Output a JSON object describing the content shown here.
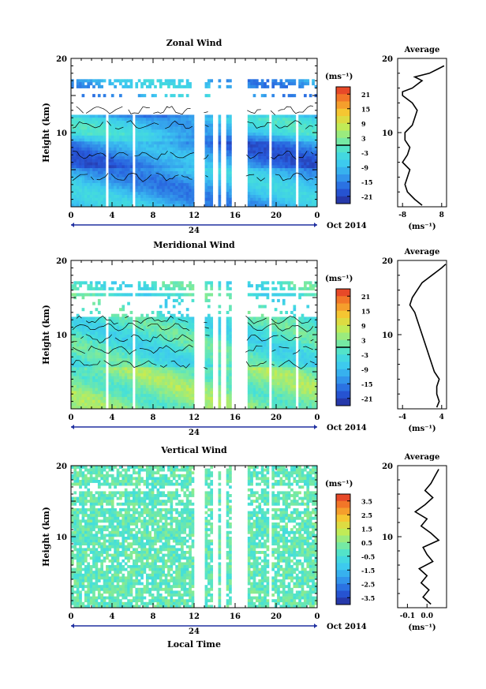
{
  "chart_data": [
    {
      "type": "heatmap",
      "title": "Zonal Wind",
      "ylabel": "Height (km)",
      "ylim": [
        0,
        20
      ],
      "y_ticks": [
        "20",
        "10"
      ],
      "x_ticks": [
        "0",
        "4",
        "8",
        "12",
        "16",
        "20",
        "0"
      ],
      "xlim": [
        0,
        24
      ],
      "date_day": "24",
      "date_month": "Oct 2014",
      "colorbar": {
        "unit": "(ms⁻¹)",
        "ticks": [
          "21",
          "15",
          "9",
          "3",
          "-3",
          "-9",
          "-15",
          "-21"
        ],
        "range": [
          -24,
          24
        ]
      },
      "profile": {
        "title": "Average",
        "xlabel": "(ms⁻¹)",
        "x_ticks": [
          "-8",
          "8"
        ],
        "y_ticks": [
          "20",
          "10"
        ],
        "xlim": [
          -10,
          10
        ],
        "heights": [
          0.2,
          1,
          2,
          3,
          4,
          5,
          6,
          7,
          8,
          9,
          10,
          11,
          12,
          13,
          14,
          15,
          15.5,
          16,
          16.5,
          17,
          17.5,
          18,
          18.5,
          19
        ],
        "values": [
          0,
          -3,
          -6,
          -7,
          -6,
          -5,
          -8,
          -6,
          -5,
          -7,
          -7,
          -4,
          -3,
          -2,
          -4,
          -8,
          -8,
          -4,
          -2,
          0,
          -3,
          3,
          6,
          9
        ]
      },
      "color_keys": [
        "#2040c8",
        "#2f6ae0",
        "#3a8ee6",
        "#47b0ea",
        "#55ccee",
        "#66ddd8",
        "#88e6b0",
        "#c0e870",
        "#f0d040",
        "#f09030",
        "#e04030"
      ]
    },
    {
      "type": "heatmap",
      "title": "Meridional Wind",
      "ylabel": "Height (km)",
      "ylim": [
        0,
        20
      ],
      "y_ticks": [
        "20",
        "10"
      ],
      "x_ticks": [
        "0",
        "4",
        "8",
        "12",
        "16",
        "20",
        "0"
      ],
      "xlim": [
        0,
        24
      ],
      "date_day": "24",
      "date_month": "Oct 2014",
      "colorbar": {
        "unit": "(ms⁻¹)",
        "ticks": [
          "21",
          "15",
          "9",
          "3",
          "-3",
          "-9",
          "-15",
          "-21"
        ],
        "range": [
          -24,
          24
        ]
      },
      "profile": {
        "title": "Average",
        "xlabel": "(ms⁻¹)",
        "x_ticks": [
          "-4",
          "4"
        ],
        "y_ticks": [
          "20",
          "10"
        ],
        "xlim": [
          -5,
          5
        ],
        "heights": [
          0.2,
          1,
          2,
          3,
          4,
          5,
          6,
          7,
          8,
          9,
          10,
          11,
          12,
          13,
          14,
          15,
          16,
          17,
          17.5,
          18,
          18.5,
          19,
          19.5
        ],
        "values": [
          3,
          3.5,
          3,
          3,
          3.5,
          2.5,
          2,
          1.5,
          1,
          0.5,
          0,
          -0.5,
          -1,
          -1.5,
          -2.5,
          -2,
          -1,
          0,
          1,
          2,
          3,
          4,
          5
        ]
      }
    },
    {
      "type": "heatmap",
      "title": "Vertical Wind",
      "ylabel": "Height (km)",
      "xlabel": "Local Time",
      "ylim": [
        0,
        20
      ],
      "y_ticks": [
        "20",
        "10"
      ],
      "x_ticks": [
        "0",
        "4",
        "8",
        "12",
        "16",
        "20",
        "0"
      ],
      "xlim": [
        0,
        24
      ],
      "date_day": "24",
      "date_month": "Oct 2014",
      "colorbar": {
        "unit": "(ms⁻¹)",
        "ticks": [
          "3.5",
          "2.5",
          "1.5",
          "0.5",
          "-0.5",
          "-1.5",
          "-2.5",
          "-3.5"
        ],
        "range": [
          -4,
          4
        ]
      },
      "profile": {
        "title": "Average",
        "xlabel": "(ms⁻¹)",
        "x_ticks": [
          "-0.1",
          "0.0"
        ],
        "y_ticks": [
          "20",
          "10"
        ],
        "xlim": [
          -0.15,
          0.1
        ],
        "heights": [
          0.5,
          1.5,
          2.5,
          3.5,
          4.5,
          5.5,
          6.5,
          7.5,
          8.5,
          9.5,
          10.5,
          11.5,
          12.5,
          13.5,
          14.5,
          15.5,
          16.5,
          17.5,
          18.5,
          19.5
        ],
        "values": [
          0.02,
          -0.02,
          0.01,
          -0.03,
          0.0,
          -0.04,
          0.03,
          0.0,
          -0.02,
          0.06,
          0.02,
          -0.03,
          0.0,
          -0.06,
          -0.01,
          0.03,
          -0.01,
          0.02,
          0.04,
          0.06
        ]
      }
    }
  ]
}
